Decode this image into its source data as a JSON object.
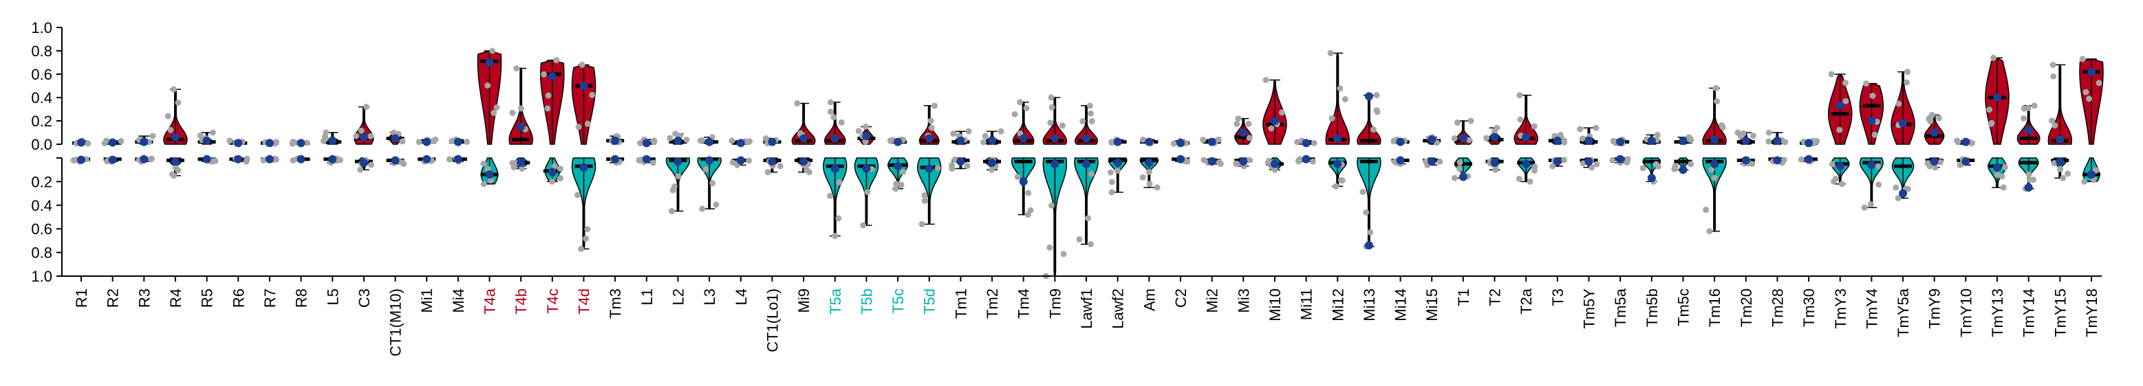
{
  "chart_data": {
    "type": "violin",
    "title": "",
    "xlabel": "",
    "ylabel": "",
    "top_ylim": [
      0,
      1
    ],
    "bottom_ylim": [
      0,
      1
    ],
    "bottom_inverted": true,
    "yticks": [
      0,
      0.2,
      0.4,
      0.6,
      0.8,
      1
    ],
    "ytick_labels": [
      "0.0",
      "0.2",
      "0.4",
      "0.6",
      "0.8",
      "1.0"
    ],
    "colors": {
      "top_violin": "#b5001e",
      "bottom_violin": "#00b3b0",
      "mean_dot": "#1c3f94",
      "sample_dot": "#a6a6a6",
      "label_default": "#000000",
      "label_t4": "#b5001e",
      "label_t5": "#00b3b0"
    },
    "categories": [
      {
        "label": "R1",
        "color": "default",
        "top": {
          "max": 0.03,
          "median": 0.01,
          "mean": 0.015
        },
        "bottom": {
          "max": 0.03,
          "median": 0.01,
          "mean": 0.015
        }
      },
      {
        "label": "R2",
        "color": "default",
        "top": {
          "max": 0.03,
          "median": 0.01,
          "mean": 0.015
        },
        "bottom": {
          "max": 0.03,
          "median": 0.01,
          "mean": 0.015
        }
      },
      {
        "label": "R3",
        "color": "default",
        "top": {
          "max": 0.07,
          "median": 0.02,
          "mean": 0.02
        },
        "bottom": {
          "max": 0.03,
          "median": 0.01,
          "mean": 0.01
        }
      },
      {
        "label": "R4",
        "color": "default",
        "top": {
          "max": 0.47,
          "median": 0.04,
          "mean": 0.06
        },
        "bottom": {
          "max": 0.15,
          "median": 0.02,
          "mean": 0.03
        }
      },
      {
        "label": "R5",
        "color": "default",
        "top": {
          "max": 0.1,
          "median": 0.02,
          "mean": 0.03
        },
        "bottom": {
          "max": 0.03,
          "median": 0.01,
          "mean": 0.01
        }
      },
      {
        "label": "R6",
        "color": "default",
        "top": {
          "max": 0.03,
          "median": 0.01,
          "mean": 0.01
        },
        "bottom": {
          "max": 0.03,
          "median": 0.01,
          "mean": 0.01
        }
      },
      {
        "label": "R7",
        "color": "default",
        "top": {
          "max": 0.02,
          "median": 0.01,
          "mean": 0.01
        },
        "bottom": {
          "max": 0.02,
          "median": 0.01,
          "mean": 0.01
        }
      },
      {
        "label": "R8",
        "color": "default",
        "top": {
          "max": 0.02,
          "median": 0.01,
          "mean": 0.01
        },
        "bottom": {
          "max": 0.02,
          "median": 0.01,
          "mean": 0.01
        }
      },
      {
        "label": "L5",
        "color": "default",
        "top": {
          "max": 0.1,
          "median": 0.02,
          "mean": 0.03
        },
        "bottom": {
          "max": 0.04,
          "median": 0.01,
          "mean": 0.01
        }
      },
      {
        "label": "C3",
        "color": "default",
        "top": {
          "max": 0.32,
          "median": 0.05,
          "mean": 0.06
        },
        "bottom": {
          "max": 0.1,
          "median": 0.03,
          "mean": 0.04
        }
      },
      {
        "label": "CT1(M10)",
        "color": "default",
        "top": {
          "max": 0.1,
          "median": 0.05,
          "mean": 0.05
        },
        "bottom": {
          "max": 0.05,
          "median": 0.02,
          "mean": 0.02
        }
      },
      {
        "label": "Mi1",
        "color": "default",
        "top": {
          "max": 0.04,
          "median": 0.02,
          "mean": 0.02
        },
        "bottom": {
          "max": 0.03,
          "median": 0.01,
          "mean": 0.01
        }
      },
      {
        "label": "Mi4",
        "color": "default",
        "top": {
          "max": 0.04,
          "median": 0.02,
          "mean": 0.02
        },
        "bottom": {
          "max": 0.03,
          "median": 0.01,
          "mean": 0.01
        }
      },
      {
        "label": "T4a",
        "color": "t4",
        "top": {
          "max": 0.8,
          "median": 0.71,
          "mean": 0.7
        },
        "bottom": {
          "max": 0.22,
          "median": 0.14,
          "mean": 0.14
        }
      },
      {
        "label": "T4b",
        "color": "t4",
        "top": {
          "max": 0.65,
          "median": 0.04,
          "mean": 0.15
        },
        "bottom": {
          "max": 0.09,
          "median": 0.04,
          "mean": 0.04
        }
      },
      {
        "label": "T4c",
        "color": "t4",
        "top": {
          "max": 0.72,
          "median": 0.6,
          "mean": 0.58
        },
        "bottom": {
          "max": 0.2,
          "median": 0.11,
          "mean": 0.12
        }
      },
      {
        "label": "T4d",
        "color": "t4",
        "top": {
          "max": 0.68,
          "median": 0.5,
          "mean": 0.5
        },
        "bottom": {
          "max": 0.77,
          "median": 0.07,
          "mean": 0.08
        }
      },
      {
        "label": "Tm3",
        "color": "default",
        "top": {
          "max": 0.07,
          "median": 0.03,
          "mean": 0.03
        },
        "bottom": {
          "max": 0.04,
          "median": 0.01,
          "mean": 0.01
        }
      },
      {
        "label": "L1",
        "color": "default",
        "top": {
          "max": 0.04,
          "median": 0.01,
          "mean": 0.01
        },
        "bottom": {
          "max": 0.04,
          "median": 0.01,
          "mean": 0.01
        }
      },
      {
        "label": "L2",
        "color": "default",
        "top": {
          "max": 0.09,
          "median": 0.02,
          "mean": 0.03
        },
        "bottom": {
          "max": 0.45,
          "median": 0.02,
          "mean": 0.03
        }
      },
      {
        "label": "L3",
        "color": "default",
        "top": {
          "max": 0.06,
          "median": 0.02,
          "mean": 0.02
        },
        "bottom": {
          "max": 0.43,
          "median": 0.01,
          "mean": 0.02
        }
      },
      {
        "label": "L4",
        "color": "default",
        "top": {
          "max": 0.03,
          "median": 0.01,
          "mean": 0.01
        },
        "bottom": {
          "max": 0.06,
          "median": 0.02,
          "mean": 0.02
        }
      },
      {
        "label": "CT1(Lo1)",
        "color": "default",
        "top": {
          "max": 0.05,
          "median": 0.02,
          "mean": 0.02
        },
        "bottom": {
          "max": 0.12,
          "median": 0.02,
          "mean": 0.03
        }
      },
      {
        "label": "Mi9",
        "color": "default",
        "top": {
          "max": 0.35,
          "median": 0.03,
          "mean": 0.05
        },
        "bottom": {
          "max": 0.12,
          "median": 0.02,
          "mean": 0.03
        }
      },
      {
        "label": "T5a",
        "color": "t5",
        "top": {
          "max": 0.36,
          "median": 0.03,
          "mean": 0.05
        },
        "bottom": {
          "max": 0.66,
          "median": 0.07,
          "mean": 0.09
        }
      },
      {
        "label": "T5b",
        "color": "t5",
        "top": {
          "max": 0.15,
          "median": 0.05,
          "mean": 0.07
        },
        "bottom": {
          "max": 0.57,
          "median": 0.07,
          "mean": 0.09
        }
      },
      {
        "label": "T5c",
        "color": "t5",
        "top": {
          "max": 0.04,
          "median": 0.02,
          "mean": 0.02
        },
        "bottom": {
          "max": 0.26,
          "median": 0.06,
          "mean": 0.07
        }
      },
      {
        "label": "T5d",
        "color": "t5",
        "top": {
          "max": 0.33,
          "median": 0.03,
          "mean": 0.05
        },
        "bottom": {
          "max": 0.56,
          "median": 0.08,
          "mean": 0.09
        }
      },
      {
        "label": "Tm1",
        "color": "default",
        "top": {
          "max": 0.11,
          "median": 0.02,
          "mean": 0.03
        },
        "bottom": {
          "max": 0.09,
          "median": 0.02,
          "mean": 0.03
        }
      },
      {
        "label": "Tm2",
        "color": "default",
        "top": {
          "max": 0.11,
          "median": 0.02,
          "mean": 0.03
        },
        "bottom": {
          "max": 0.1,
          "median": 0.03,
          "mean": 0.04
        }
      },
      {
        "label": "Tm4",
        "color": "default",
        "top": {
          "max": 0.36,
          "median": 0.03,
          "mean": 0.05
        },
        "bottom": {
          "max": 0.48,
          "median": 0.03,
          "mean": 0.2
        }
      },
      {
        "label": "Tm9",
        "color": "default",
        "top": {
          "max": 0.4,
          "median": 0.03,
          "mean": 0.05
        },
        "bottom": {
          "max": 1.0,
          "median": 0.03,
          "mean": 0.05
        }
      },
      {
        "label": "Lawf1",
        "color": "default",
        "top": {
          "max": 0.33,
          "median": 0.03,
          "mean": 0.05
        },
        "bottom": {
          "max": 0.73,
          "median": 0.03,
          "mean": 0.05
        }
      },
      {
        "label": "Lawf2",
        "color": "default",
        "top": {
          "max": 0.04,
          "median": 0.02,
          "mean": 0.02
        },
        "bottom": {
          "max": 0.29,
          "median": 0.02,
          "mean": 0.04
        }
      },
      {
        "label": "Am",
        "color": "default",
        "top": {
          "max": 0.04,
          "median": 0.02,
          "mean": 0.02
        },
        "bottom": {
          "max": 0.25,
          "median": 0.02,
          "mean": 0.04
        }
      },
      {
        "label": "C2",
        "color": "default",
        "top": {
          "max": 0.03,
          "median": 0.01,
          "mean": 0.01
        },
        "bottom": {
          "max": 0.03,
          "median": 0.01,
          "mean": 0.01
        }
      },
      {
        "label": "Mi2",
        "color": "default",
        "top": {
          "max": 0.04,
          "median": 0.02,
          "mean": 0.02
        },
        "bottom": {
          "max": 0.05,
          "median": 0.02,
          "mean": 0.03
        }
      },
      {
        "label": "Mi3",
        "color": "default",
        "top": {
          "max": 0.22,
          "median": 0.06,
          "mean": 0.1
        },
        "bottom": {
          "max": 0.07,
          "median": 0.02,
          "mean": 0.03
        }
      },
      {
        "label": "Mi10",
        "color": "default",
        "top": {
          "max": 0.55,
          "median": 0.17,
          "mean": 0.2
        },
        "bottom": {
          "max": 0.1,
          "median": 0.05,
          "mean": 0.05
        }
      },
      {
        "label": "Mi11",
        "color": "default",
        "top": {
          "max": 0.03,
          "median": 0.01,
          "mean": 0.01
        },
        "bottom": {
          "max": 0.03,
          "median": 0.01,
          "mean": 0.01
        }
      },
      {
        "label": "Mi12",
        "color": "default",
        "top": {
          "max": 0.78,
          "median": 0.04,
          "mean": 0.05
        },
        "bottom": {
          "max": 0.24,
          "median": 0.04,
          "mean": 0.05
        }
      },
      {
        "label": "Mi13",
        "color": "default",
        "top": {
          "max": 0.42,
          "median": 0.03,
          "mean": 0.41
        },
        "bottom": {
          "max": 0.75,
          "median": 0.03,
          "mean": 0.74
        }
      },
      {
        "label": "Mi14",
        "color": "default",
        "top": {
          "max": 0.04,
          "median": 0.02,
          "mean": 0.02
        },
        "bottom": {
          "max": 0.05,
          "median": 0.02,
          "mean": 0.02
        }
      },
      {
        "label": "Mi15",
        "color": "default",
        "top": {
          "max": 0.06,
          "median": 0.03,
          "mean": 0.04
        },
        "bottom": {
          "max": 0.06,
          "median": 0.02,
          "mean": 0.03
        }
      },
      {
        "label": "T1",
        "color": "default",
        "top": {
          "max": 0.2,
          "median": 0.03,
          "mean": 0.05
        },
        "bottom": {
          "max": 0.17,
          "median": 0.05,
          "mean": 0.16
        }
      },
      {
        "label": "T2",
        "color": "default",
        "top": {
          "max": 0.14,
          "median": 0.04,
          "mean": 0.06
        },
        "bottom": {
          "max": 0.1,
          "median": 0.03,
          "mean": 0.04
        }
      },
      {
        "label": "T2a",
        "color": "default",
        "top": {
          "max": 0.42,
          "median": 0.05,
          "mean": 0.06
        },
        "bottom": {
          "max": 0.2,
          "median": 0.04,
          "mean": 0.05
        }
      },
      {
        "label": "T3",
        "color": "default",
        "top": {
          "max": 0.08,
          "median": 0.03,
          "mean": 0.03
        },
        "bottom": {
          "max": 0.07,
          "median": 0.02,
          "mean": 0.03
        }
      },
      {
        "label": "Tm5Y",
        "color": "default",
        "top": {
          "max": 0.14,
          "median": 0.02,
          "mean": 0.03
        },
        "bottom": {
          "max": 0.08,
          "median": 0.02,
          "mean": 0.03
        }
      },
      {
        "label": "Tm5a",
        "color": "default",
        "top": {
          "max": 0.04,
          "median": 0.02,
          "mean": 0.02
        },
        "bottom": {
          "max": 0.04,
          "median": 0.01,
          "mean": 0.01
        }
      },
      {
        "label": "Tm5b",
        "color": "default",
        "top": {
          "max": 0.08,
          "median": 0.02,
          "mean": 0.03
        },
        "bottom": {
          "max": 0.2,
          "median": 0.03,
          "mean": 0.17
        }
      },
      {
        "label": "Tm5c",
        "color": "default",
        "top": {
          "max": 0.06,
          "median": 0.02,
          "mean": 0.03
        },
        "bottom": {
          "max": 0.1,
          "median": 0.03,
          "mean": 0.1
        }
      },
      {
        "label": "Tm16",
        "color": "default",
        "top": {
          "max": 0.48,
          "median": 0.03,
          "mean": 0.04
        },
        "bottom": {
          "max": 0.62,
          "median": 0.03,
          "mean": 0.05
        }
      },
      {
        "label": "Tm20",
        "color": "default",
        "top": {
          "max": 0.1,
          "median": 0.02,
          "mean": 0.03
        },
        "bottom": {
          "max": 0.05,
          "median": 0.02,
          "mean": 0.02
        }
      },
      {
        "label": "Tm28",
        "color": "default",
        "top": {
          "max": 0.1,
          "median": 0.02,
          "mean": 0.03
        },
        "bottom": {
          "max": 0.04,
          "median": 0.01,
          "mean": 0.02
        }
      },
      {
        "label": "Tm30",
        "color": "default",
        "top": {
          "max": 0.03,
          "median": 0.01,
          "mean": 0.01
        },
        "bottom": {
          "max": 0.03,
          "median": 0.01,
          "mean": 0.01
        }
      },
      {
        "label": "TmY3",
        "color": "default",
        "top": {
          "max": 0.6,
          "median": 0.26,
          "mean": 0.33
        },
        "bottom": {
          "max": 0.22,
          "median": 0.05,
          "mean": 0.07
        }
      },
      {
        "label": "TmY4",
        "color": "default",
        "top": {
          "max": 0.52,
          "median": 0.33,
          "mean": 0.2
        },
        "bottom": {
          "max": 0.42,
          "median": 0.04,
          "mean": 0.06
        }
      },
      {
        "label": "TmY5a",
        "color": "default",
        "top": {
          "max": 0.62,
          "median": 0.17,
          "mean": 0.18
        },
        "bottom": {
          "max": 0.34,
          "median": 0.07,
          "mean": 0.3
        }
      },
      {
        "label": "TmY9",
        "color": "default",
        "top": {
          "max": 0.25,
          "median": 0.07,
          "mean": 0.1
        },
        "bottom": {
          "max": 0.08,
          "median": 0.02,
          "mean": 0.03
        }
      },
      {
        "label": "TmY10",
        "color": "default",
        "top": {
          "max": 0.03,
          "median": 0.01,
          "mean": 0.02
        },
        "bottom": {
          "max": 0.06,
          "median": 0.02,
          "mean": 0.03
        }
      },
      {
        "label": "TmY13",
        "color": "default",
        "top": {
          "max": 0.74,
          "median": 0.4,
          "mean": 0.4
        },
        "bottom": {
          "max": 0.25,
          "median": 0.07,
          "mean": 0.08
        }
      },
      {
        "label": "TmY14",
        "color": "default",
        "top": {
          "max": 0.33,
          "median": 0.05,
          "mean": 0.12
        },
        "bottom": {
          "max": 0.26,
          "median": 0.04,
          "mean": 0.25
        }
      },
      {
        "label": "TmY15",
        "color": "default",
        "top": {
          "max": 0.68,
          "median": 0.03,
          "mean": 0.04
        },
        "bottom": {
          "max": 0.17,
          "median": 0.02,
          "mean": 0.03
        }
      },
      {
        "label": "TmY18",
        "color": "default",
        "top": {
          "max": 0.73,
          "median": 0.62,
          "mean": 0.62
        },
        "bottom": {
          "max": 0.2,
          "median": 0.14,
          "mean": 0.14
        }
      }
    ]
  }
}
